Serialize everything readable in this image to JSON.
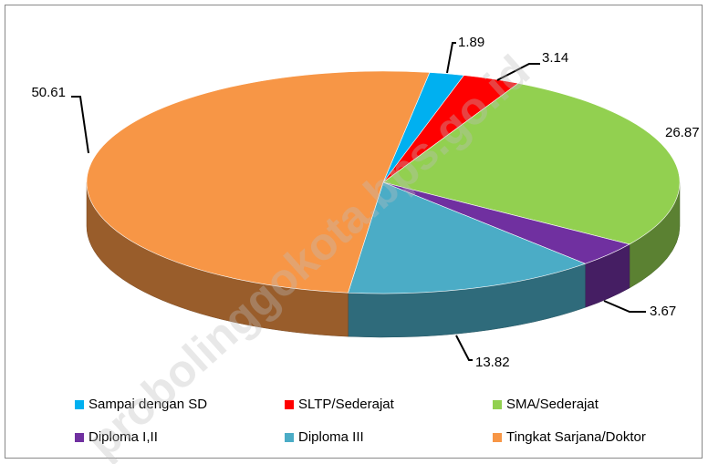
{
  "chart_data": {
    "type": "pie3d",
    "categories": [
      "Sampai dengan SD",
      "SLTP/Sederajat",
      "SMA/Sederajat",
      "Diploma I,II",
      "Diploma III",
      "Tingkat Sarjana/Doktor"
    ],
    "values": [
      1.89,
      3.14,
      26.87,
      3.67,
      13.82,
      50.61
    ],
    "colors": [
      "#00b0f0",
      "#ff0000",
      "#92d050",
      "#7030a0",
      "#4bacc6",
      "#f79646"
    ],
    "legend": "bottom",
    "watermark": "probolinggokota.bps.go.id"
  }
}
